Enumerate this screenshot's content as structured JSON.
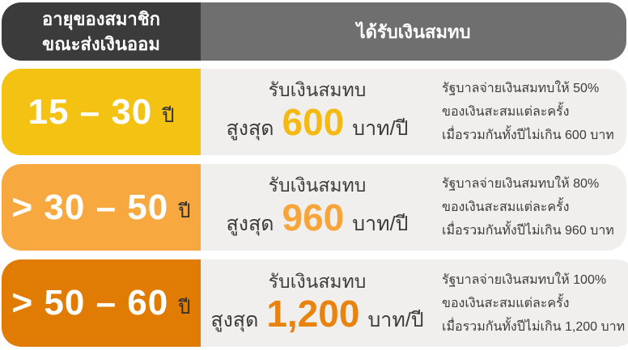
{
  "page": {
    "background": "#FFFFFF",
    "panel_bg": "#F0EFED",
    "text_color": "#3C3C3C"
  },
  "header": {
    "left_bg": "#3B3B3B",
    "right_bg": "#6F6F6F",
    "left_title_line1": "อายุของสมาชิก",
    "left_title_line2": "ขณะส่งเงินออม",
    "right_title": "ได้รับเงินสมทบ"
  },
  "rows": [
    {
      "age_range": "15 – 30",
      "age_unit": "ปี",
      "accent_color": "#F3C212",
      "amount_color": "#F5B913",
      "subsidy_title": "รับเงินสมทบ",
      "max_label": "สูงสุด",
      "amount": "600",
      "amount_unit": "บาท/ปี",
      "details": [
        "รัฐบาลจ่ายเงินสมทบให้ 50%",
        "ของเงินสะสมแต่ละครั้ง",
        "เมื่อรวมกันทั้งปีไม่เกิน 600 บาท"
      ]
    },
    {
      "age_range": "> 30 – 50",
      "age_unit": "ปี",
      "accent_color": "#F7A83E",
      "amount_color": "#F7A438",
      "subsidy_title": "รับเงินสมทบ",
      "max_label": "สูงสุด",
      "amount": "960",
      "amount_unit": "บาท/ปี",
      "details": [
        "รัฐบาลจ่ายเงินสมทบให้ 80%",
        "ของเงินสะสมแต่ละครั้ง",
        "เมื่อรวมกันทั้งปีไม่เกิน 960 บาท"
      ]
    },
    {
      "age_range": "> 50 – 60",
      "age_unit": "ปี",
      "accent_color": "#E07C04",
      "amount_color": "#E8830E",
      "subsidy_title": "รับเงินสมทบ",
      "max_label": "สูงสุด",
      "amount": "1,200",
      "amount_unit": "บาท/ปี",
      "details": [
        "รัฐบาลจ่ายเงินสมทบให้ 100%",
        "ของเงินสะสมแต่ละครั้ง",
        "เมื่อรวมกันทั้งปีไม่เกิน 1,200 บาท"
      ]
    }
  ]
}
